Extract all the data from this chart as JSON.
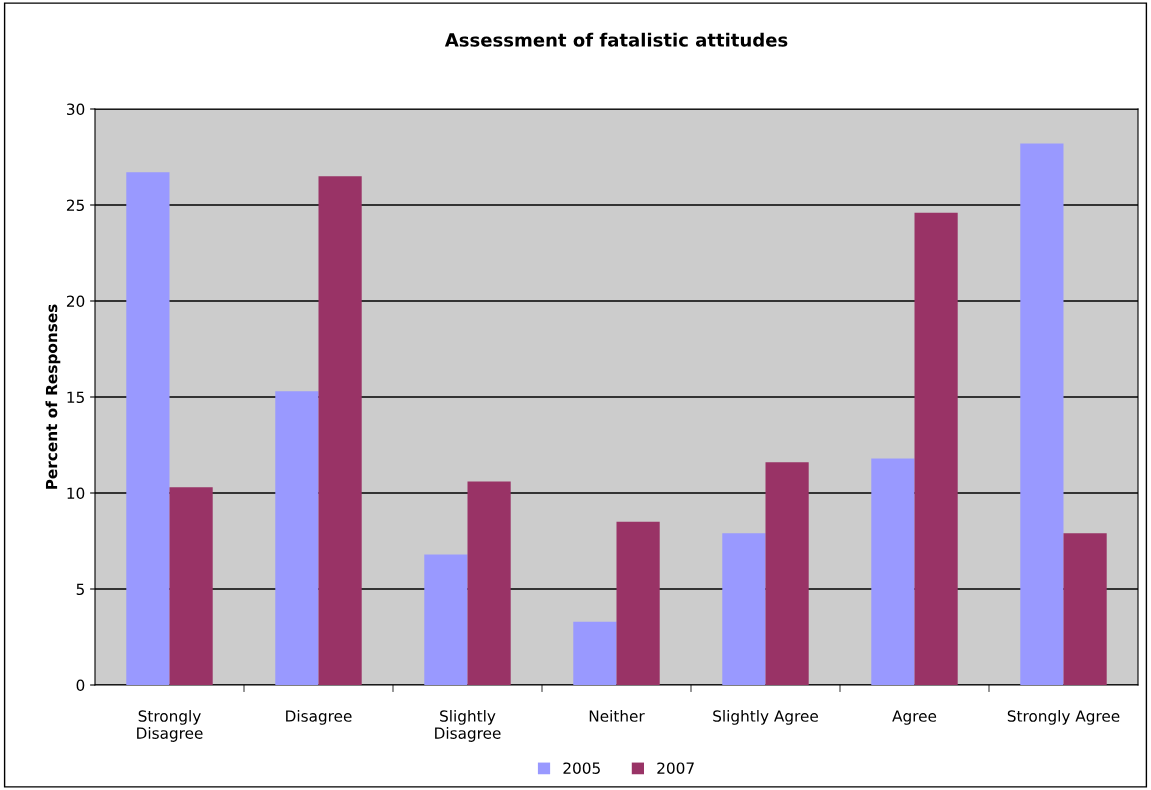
{
  "chart_data": {
    "type": "bar",
    "title": "Assessment of fatalistic attitudes",
    "ylabel": "Percent of Responses",
    "categories": [
      "Strongly\nDisagree",
      "Disagree",
      "Slightly\nDisagree",
      "Neither",
      "Slightly Agree",
      "Agree",
      "Strongly Agree"
    ],
    "series": [
      {
        "name": "2005",
        "color": "#9999ff",
        "values": [
          26.7,
          15.3,
          6.8,
          3.3,
          7.9,
          11.8,
          28.2
        ]
      },
      {
        "name": "2007",
        "color": "#993366",
        "values": [
          10.3,
          26.5,
          10.6,
          8.5,
          11.6,
          24.6,
          7.9
        ]
      }
    ],
    "ylim": [
      0,
      30
    ],
    "yticks": [
      0,
      5,
      10,
      15,
      20,
      25,
      30
    ],
    "grid": "y",
    "legend": "bottom"
  }
}
